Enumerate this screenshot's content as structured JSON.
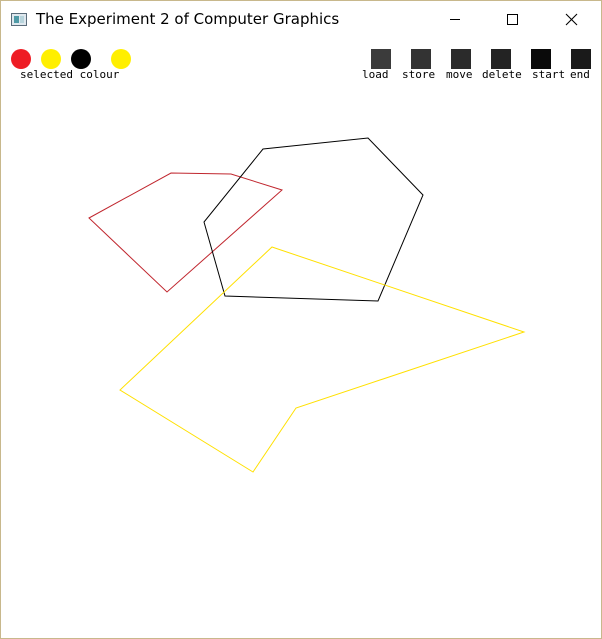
{
  "window": {
    "title": "The Experiment 2 of Computer Graphics",
    "controls": {
      "minimize": "minimize-icon",
      "maximize": "maximize-icon",
      "close": "close-icon"
    }
  },
  "toolbar": {
    "colors": [
      {
        "name": "red",
        "hex": "#ee1c24"
      },
      {
        "name": "yellow",
        "hex": "#ffef00"
      },
      {
        "name": "black",
        "hex": "#000000"
      }
    ],
    "selected_color": {
      "name": "yellow",
      "hex": "#ffef00"
    },
    "selected_label": "selected colour",
    "actions": [
      {
        "label": "load",
        "hex": "#3b3b3b"
      },
      {
        "label": "store",
        "hex": "#333333"
      },
      {
        "label": "move",
        "hex": "#2b2b2b"
      },
      {
        "label": "delete",
        "hex": "#232323"
      },
      {
        "label": "start",
        "hex": "#0a0a0a"
      },
      {
        "label": "end",
        "hex": "#1a1a1a"
      }
    ]
  },
  "canvas": {
    "polygons": [
      {
        "name": "red-polygon",
        "color": "#c0262e"
      },
      {
        "name": "black-polygon",
        "color": "#000000"
      },
      {
        "name": "yellow-polygon",
        "color": "#ffe000"
      }
    ]
  }
}
